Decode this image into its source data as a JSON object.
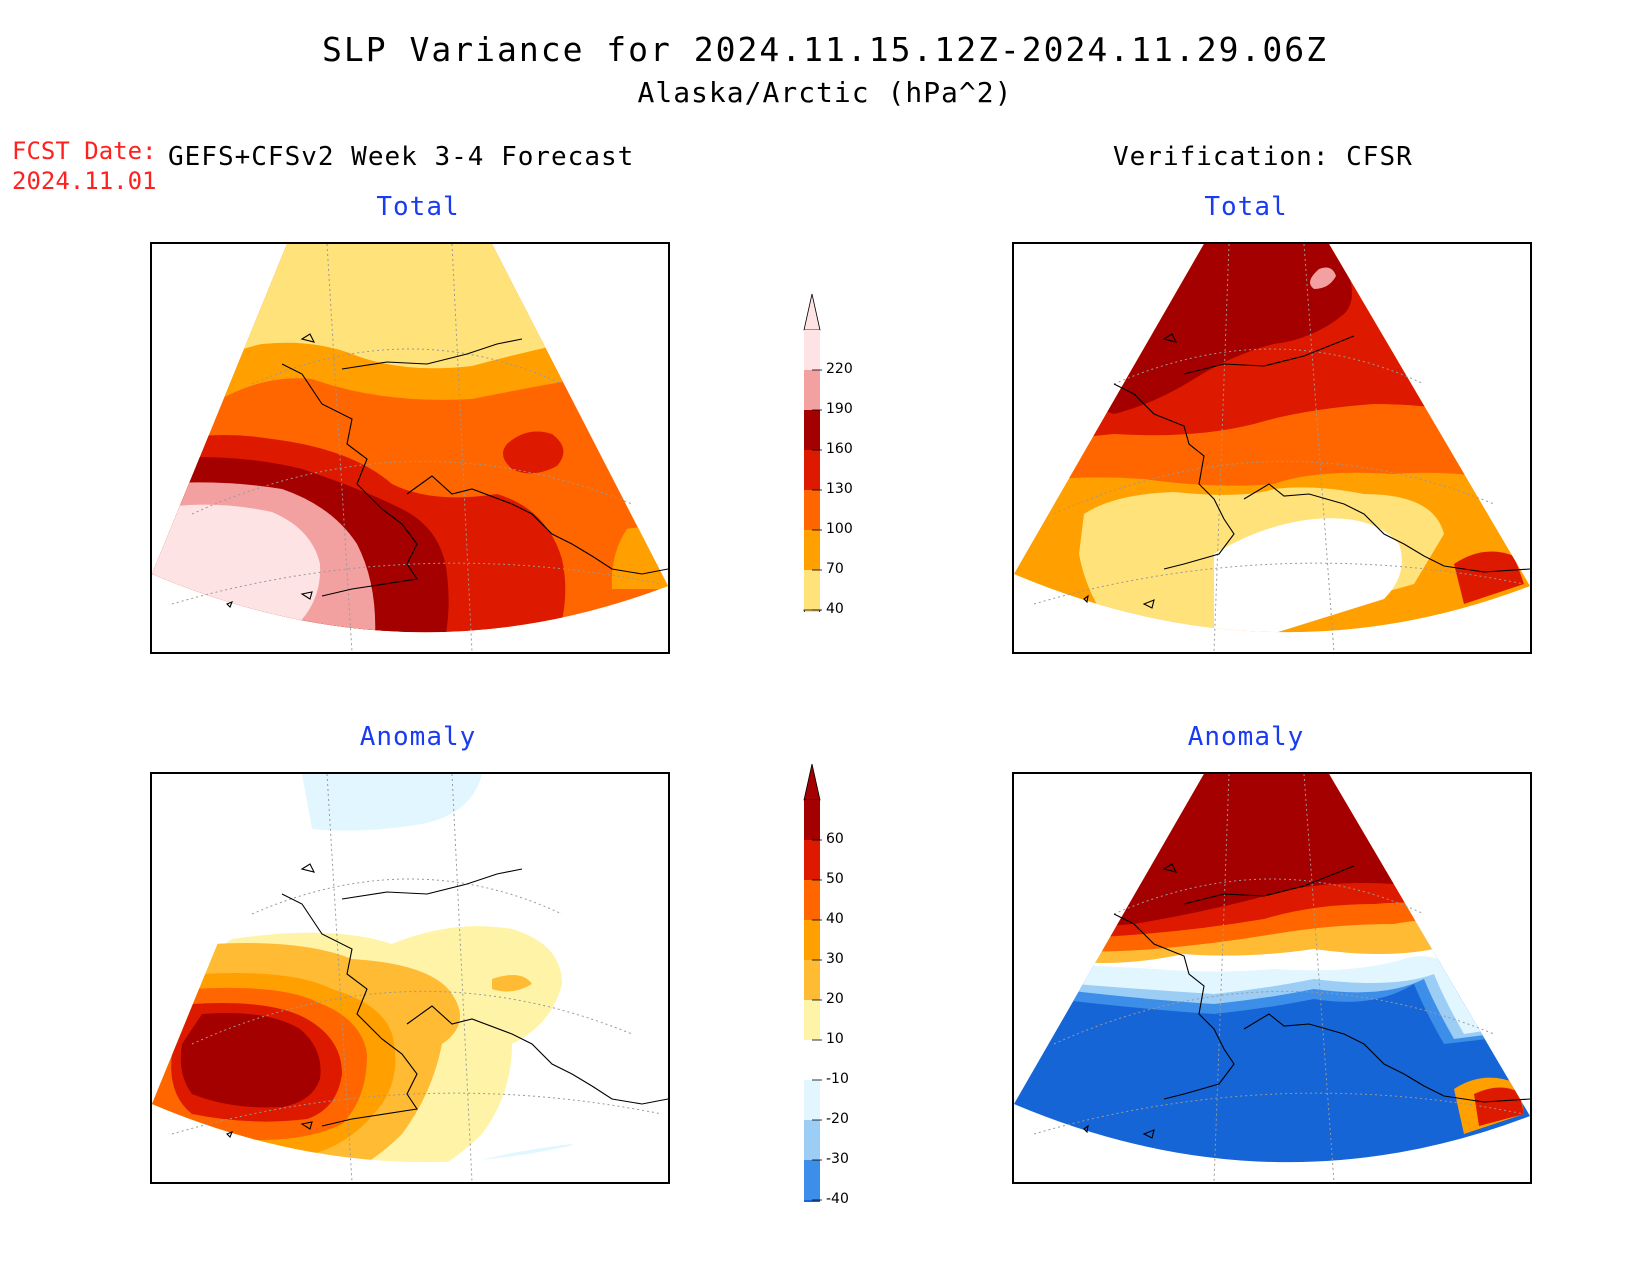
{
  "header": {
    "title": "SLP Variance for 2024.11.15.12Z-2024.11.29.06Z",
    "subtitle": "Alaska/Arctic (hPa^2)"
  },
  "forecast_info": {
    "fcst_label": "FCST Date:",
    "fcst_date": "2024.11.01",
    "forecast_source": "GEFS+CFSv2 Week 3-4 Forecast",
    "verification_source": "Verification: CFSR"
  },
  "panels": {
    "forecast_total": {
      "title": "Total"
    },
    "verification_total": {
      "title": "Total"
    },
    "forecast_anomaly": {
      "title": "Anomaly"
    },
    "verification_anomaly": {
      "title": "Anomaly"
    }
  },
  "colorbars": {
    "total": {
      "labels": [
        "220",
        "190",
        "160",
        "130",
        "100",
        "70",
        "40"
      ],
      "colors": [
        "#fde3e3",
        "#f2a0a0",
        "#a50000",
        "#dd1a00",
        "#ff6600",
        "#ff9f00",
        "#ffe27a"
      ]
    },
    "anomaly": {
      "labels": [
        "60",
        "50",
        "40",
        "30",
        "20",
        "10",
        "-10",
        "-20",
        "-30",
        "-40"
      ],
      "colors": [
        "#a50000",
        "#dd1a00",
        "#ff6600",
        "#ff9f00",
        "#ffbb33",
        "#fff3a8",
        "#ffffff",
        "#e2f6ff",
        "#9ccdf5",
        "#3d8ee8",
        "#1565d6"
      ]
    }
  }
}
